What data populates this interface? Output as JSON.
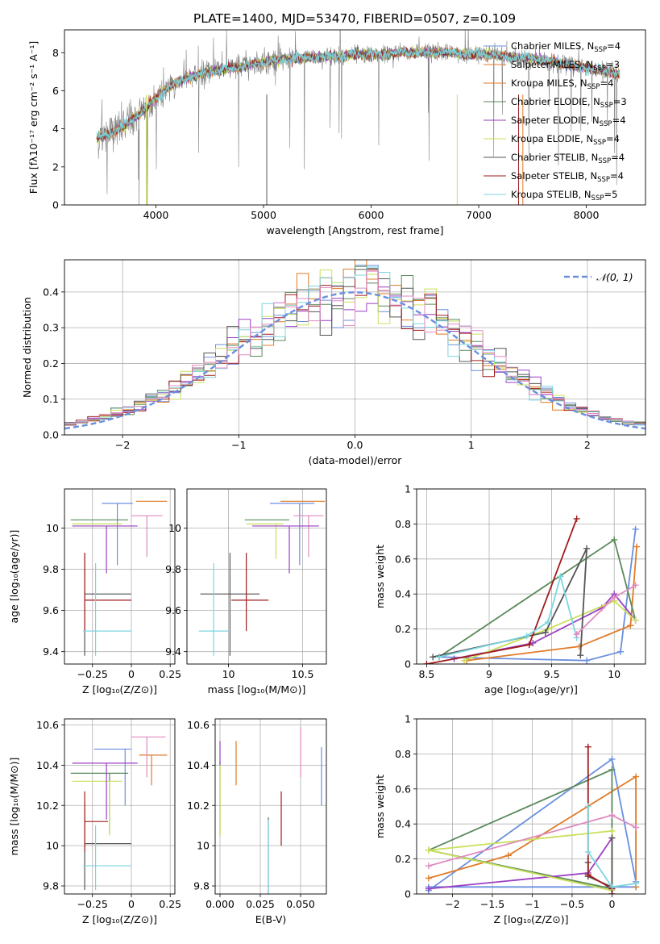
{
  "figure_title": "PLATE=1400, MJD=53470, FIBERID=0507, z=0.109",
  "colors": [
    "#6a8fdf",
    "#e07b2a",
    "#5a8a5a",
    "#9b3fc3",
    "#c9e05a",
    "#555555",
    "#a01c1c",
    "#7bd6e0",
    "#e08ac0"
  ],
  "chart_data": [
    {
      "id": "spectrum",
      "type": "line",
      "title": "",
      "xlabel": "wavelength [Angstrom, rest frame]",
      "ylabel": "Flux [fλ10⁻¹⁷ erg cm⁻² s⁻¹ A⁻¹]",
      "xlim": [
        3150,
        8550
      ],
      "ylim": [
        0,
        9.2
      ],
      "xticks": [
        4000,
        5000,
        6000,
        7000,
        8000
      ],
      "yticks": [
        0,
        2,
        4,
        6,
        8
      ],
      "grid": false,
      "legend_position": "right",
      "legend": [
        {
          "label": "Chabrier MILES, N",
          "sub": "SSP",
          "suffix": "=4",
          "color": "#6a8fdf"
        },
        {
          "label": "Salpeter MILES, N",
          "sub": "SSP",
          "suffix": "=3",
          "color": "#e07b2a"
        },
        {
          "label": "Kroupa MILES, N",
          "sub": "SSP",
          "suffix": "=4",
          "color": "#e07b2a"
        },
        {
          "label": "Chabrier ELODIE, N",
          "sub": "SSP",
          "suffix": "=3",
          "color": "#5a8a5a"
        },
        {
          "label": "Salpeter ELODIE, N",
          "sub": "SSP",
          "suffix": "=4",
          "color": "#9b3fc3"
        },
        {
          "label": "Kroupa ELODIE, N",
          "sub": "SSP",
          "suffix": "=4",
          "color": "#c9e05a"
        },
        {
          "label": "Chabrier STELIB, N",
          "sub": "SSP",
          "suffix": "=4",
          "color": "#555555"
        },
        {
          "label": "Salpeter STELIB, N",
          "sub": "SSP",
          "suffix": "=4",
          "color": "#a01c1c"
        },
        {
          "label": "Kroupa STELIB, N",
          "sub": "SSP",
          "suffix": "=5",
          "color": "#7bd6e0"
        }
      ],
      "observed_color": "#808080",
      "continuum": {
        "x": [
          3450,
          3550,
          3650,
          3750,
          3850,
          3950,
          4050,
          4150,
          4300,
          4500,
          4700,
          4900,
          5100,
          5300,
          5500,
          5700,
          5900,
          6100,
          6300,
          6500,
          6700,
          6900,
          7100,
          7300,
          7500,
          7700,
          7900,
          8100,
          8300
        ],
        "y": [
          3.5,
          3.7,
          4.0,
          4.3,
          4.8,
          5.3,
          5.9,
          6.3,
          6.7,
          7.0,
          7.2,
          7.4,
          7.6,
          7.7,
          7.8,
          7.8,
          7.9,
          7.9,
          8.0,
          8.0,
          8.0,
          7.9,
          7.9,
          7.8,
          7.7,
          7.5,
          7.3,
          7.1,
          6.9
        ]
      }
    },
    {
      "id": "residuals",
      "type": "step",
      "title": "",
      "xlabel": "(data-model)/error",
      "ylabel": "Normed distribution",
      "xlim": [
        -2.5,
        2.5
      ],
      "ylim": [
        0,
        0.49
      ],
      "xticks": [
        -2,
        -1,
        0,
        1,
        2
      ],
      "yticks": [
        0.0,
        0.1,
        0.2,
        0.3,
        0.4
      ],
      "grid": true,
      "legend_position": "top-right",
      "normal_label": "𝒩(0, 1)",
      "normal_color": "#6a8fdf",
      "bin_width": 0.1
    },
    {
      "id": "age-vs-Z",
      "type": "errorbar",
      "xlabel": "Z [log₁₀(Z/Z⊙)]",
      "ylabel": "age  [log₁₀(age/yr)]",
      "xlim": [
        -0.43,
        0.28
      ],
      "ylim": [
        9.34,
        10.19
      ],
      "xticks": [
        -0.25,
        0.0,
        0.25
      ],
      "yticks": [
        9.4,
        9.6,
        9.8,
        10.0
      ],
      "grid": true,
      "points": [
        {
          "x": -0.09,
          "y": 10.12,
          "xerr": [
            0.1,
            0.1
          ],
          "yerr": [
            0.3,
            0.0
          ],
          "color": "#6a8fdf"
        },
        {
          "x": 0.13,
          "y": 10.13,
          "xerr": [
            0.1,
            0.1
          ],
          "yerr": [
            0.0,
            0.0
          ],
          "color": "#e07b2a"
        },
        {
          "x": 0.1,
          "y": 10.06,
          "xerr": [
            0.1,
            0.1
          ],
          "yerr": [
            0.2,
            0.0
          ],
          "color": "#e08ac0"
        },
        {
          "x": -0.14,
          "y": 10.04,
          "xerr": [
            0.25,
            0.12
          ],
          "yerr": [
            0.0,
            0.0
          ],
          "color": "#5a8a5a"
        },
        {
          "x": -0.14,
          "y": 10.02,
          "xerr": [
            0.24,
            0.08
          ],
          "yerr": [
            0.0,
            0.0
          ],
          "color": "#c9e05a"
        },
        {
          "x": -0.16,
          "y": 10.01,
          "xerr": [
            0.22,
            0.2
          ],
          "yerr": [
            0.23,
            0.0
          ],
          "color": "#9b3fc3"
        },
        {
          "x": -0.3,
          "y": 9.68,
          "xerr": [
            0.0,
            0.3
          ],
          "yerr": [
            0.3,
            0.2
          ],
          "color": "#555555"
        },
        {
          "x": -0.3,
          "y": 9.65,
          "xerr": [
            0.0,
            0.3
          ],
          "yerr": [
            0.15,
            0.23
          ],
          "color": "#a01c1c"
        },
        {
          "x": -0.23,
          "y": 9.5,
          "xerr": [
            0.08,
            0.23
          ],
          "yerr": [
            0.12,
            0.33
          ],
          "color": "#7bd6e0"
        }
      ]
    },
    {
      "id": "age-vs-mass",
      "type": "errorbar",
      "xlabel": "mass [log₁₀(M/M⊙)]",
      "ylabel": "",
      "xlim": [
        9.72,
        10.66
      ],
      "ylim": [
        9.34,
        10.19
      ],
      "xticks": [
        10.0,
        10.5
      ],
      "yticks": [
        9.4,
        9.6,
        9.8,
        10.0
      ],
      "grid": true,
      "points": [
        {
          "x": 10.48,
          "y": 10.12,
          "xerr": [
            0.2,
            0.1
          ],
          "yerr": [
            0.3,
            0.0
          ],
          "color": "#6a8fdf"
        },
        {
          "x": 10.45,
          "y": 10.13,
          "xerr": [
            0.1,
            0.2
          ],
          "yerr": [
            0.0,
            0.0
          ],
          "color": "#e07b2a"
        },
        {
          "x": 10.54,
          "y": 10.06,
          "xerr": [
            0.1,
            0.1
          ],
          "yerr": [
            0.2,
            0.0
          ],
          "color": "#e08ac0"
        },
        {
          "x": 10.36,
          "y": 10.04,
          "xerr": [
            0.25,
            0.05
          ],
          "yerr": [
            0.0,
            0.0
          ],
          "color": "#5a8a5a"
        },
        {
          "x": 10.32,
          "y": 10.02,
          "xerr": [
            0.2,
            0.05
          ],
          "yerr": [
            0.17,
            0.0
          ],
          "color": "#c9e05a"
        },
        {
          "x": 10.41,
          "y": 10.01,
          "xerr": [
            0.25,
            0.2
          ],
          "yerr": [
            0.23,
            0.0
          ],
          "color": "#9b3fc3"
        },
        {
          "x": 10.01,
          "y": 9.68,
          "xerr": [
            0.2,
            0.2
          ],
          "yerr": [
            0.3,
            0.2
          ],
          "color": "#555555"
        },
        {
          "x": 10.12,
          "y": 9.65,
          "xerr": [
            0.1,
            0.15
          ],
          "yerr": [
            0.15,
            0.23
          ],
          "color": "#a01c1c"
        },
        {
          "x": 9.9,
          "y": 9.5,
          "xerr": [
            0.1,
            0.1
          ],
          "yerr": [
            0.12,
            0.33
          ],
          "color": "#7bd6e0"
        }
      ]
    },
    {
      "id": "mass-weight-vs-age",
      "type": "line",
      "xlabel": "age  [log₁₀(age/yr)]",
      "ylabel": "mass weight",
      "xlim": [
        8.42,
        10.25
      ],
      "ylim": [
        0.0,
        1.0
      ],
      "xticks": [
        8.5,
        9.0,
        9.5,
        10.0
      ],
      "yticks": [
        0.0,
        0.2,
        0.4,
        0.6,
        0.8,
        1.0
      ],
      "grid": true,
      "series": [
        {
          "color": "#6a8fdf",
          "x": [
            8.6,
            9.78,
            10.05,
            10.17
          ],
          "y": [
            0.04,
            0.02,
            0.07,
            0.77
          ]
        },
        {
          "color": "#e07b2a",
          "x": [
            8.82,
            9.72,
            10.13,
            10.18
          ],
          "y": [
            0.02,
            0.1,
            0.22,
            0.67
          ]
        },
        {
          "color": "#5a8a5a",
          "x": [
            8.6,
            10.0,
            10.17
          ],
          "y": [
            0.04,
            0.71,
            0.25
          ]
        },
        {
          "color": "#9b3fc3",
          "x": [
            8.72,
            9.35,
            9.9,
            10.0,
            10.17
          ],
          "y": [
            0.03,
            0.12,
            0.32,
            0.4,
            0.25
          ]
        },
        {
          "color": "#c9e05a",
          "x": [
            8.8,
            9.47,
            10.0,
            10.17
          ],
          "y": [
            0.02,
            0.2,
            0.36,
            0.25
          ]
        },
        {
          "color": "#555555",
          "x": [
            8.55,
            9.45,
            9.78,
            9.73
          ],
          "y": [
            0.04,
            0.18,
            0.66,
            0.05
          ]
        },
        {
          "color": "#a01c1c",
          "x": [
            8.5,
            9.32,
            9.7
          ],
          "y": [
            0.0,
            0.11,
            0.83
          ]
        },
        {
          "color": "#7bd6e0",
          "x": [
            8.6,
            9.3,
            9.47,
            9.57,
            9.7
          ],
          "y": [
            0.04,
            0.16,
            0.24,
            0.5,
            0.15
          ]
        },
        {
          "color": "#e08ac0",
          "x": [
            9.7,
            10.0,
            10.17
          ],
          "y": [
            0.17,
            0.38,
            0.45
          ]
        }
      ]
    },
    {
      "id": "mass-vs-Z",
      "type": "errorbar",
      "xlabel": "Z [log₁₀(Z/Z⊙)]",
      "ylabel": "mass [log₁₀(M/M⊙)]",
      "xlim": [
        -0.43,
        0.28
      ],
      "ylim": [
        9.76,
        10.63
      ],
      "xticks": [
        -0.25,
        0.0,
        0.25
      ],
      "yticks": [
        9.8,
        10.0,
        10.2,
        10.4,
        10.6
      ],
      "grid": true,
      "points": [
        {
          "x": -0.04,
          "y": 10.48,
          "xerr": [
            0.2,
            0.04
          ],
          "yerr": [
            0.28,
            0.0
          ],
          "color": "#6a8fdf"
        },
        {
          "x": 0.13,
          "y": 10.45,
          "xerr": [
            0.08,
            0.1
          ],
          "yerr": [
            0.15,
            0.0
          ],
          "color": "#e07b2a"
        },
        {
          "x": 0.1,
          "y": 10.54,
          "xerr": [
            0.1,
            0.12
          ],
          "yerr": [
            0.2,
            0.0
          ],
          "color": "#e08ac0"
        },
        {
          "x": -0.14,
          "y": 10.36,
          "xerr": [
            0.25,
            0.12
          ],
          "yerr": [
            0.3,
            0.0
          ],
          "color": "#5a8a5a"
        },
        {
          "x": -0.14,
          "y": 10.32,
          "xerr": [
            0.24,
            0.08
          ],
          "yerr": [
            0.27,
            0.0
          ],
          "color": "#c9e05a"
        },
        {
          "x": -0.16,
          "y": 10.41,
          "xerr": [
            0.22,
            0.2
          ],
          "yerr": [
            0.28,
            0.0
          ],
          "color": "#9b3fc3"
        },
        {
          "x": -0.3,
          "y": 10.01,
          "xerr": [
            0.0,
            0.3
          ],
          "yerr": [
            0.23,
            0.2
          ],
          "color": "#555555"
        },
        {
          "x": -0.3,
          "y": 10.12,
          "xerr": [
            0.0,
            0.15
          ],
          "yerr": [
            0.15,
            0.15
          ],
          "color": "#a01c1c"
        },
        {
          "x": -0.23,
          "y": 9.9,
          "xerr": [
            0.08,
            0.23
          ],
          "yerr": [
            0.12,
            0.2
          ],
          "color": "#7bd6e0"
        }
      ]
    },
    {
      "id": "mass-vs-EBV",
      "type": "errorbar",
      "xlabel": "E(B-V)",
      "ylabel": "",
      "xlim": [
        -0.003,
        0.066
      ],
      "ylim": [
        9.76,
        10.63
      ],
      "xticks": [
        0.0,
        0.025,
        0.05
      ],
      "yticks": [
        9.8,
        10.0,
        10.2,
        10.4,
        10.6
      ],
      "xtick_labels": [
        "0.000",
        "0.025",
        "0.050"
      ],
      "grid": true,
      "points": [
        {
          "x": 0.063,
          "y": 10.34,
          "xerr": [
            0,
            0
          ],
          "yerr": [
            0.14,
            0.15
          ],
          "color": "#6a8fdf"
        },
        {
          "x": 0.01,
          "y": 10.41,
          "xerr": [
            0,
            0
          ],
          "yerr": [
            0.11,
            0.11
          ],
          "color": "#e07b2a"
        },
        {
          "x": 0.05,
          "y": 10.46,
          "xerr": [
            0,
            0
          ],
          "yerr": [
            0.12,
            0.13
          ],
          "color": "#e08ac0"
        },
        {
          "x": 0.0,
          "y": 10.22,
          "xerr": [
            0,
            0
          ],
          "yerr": [
            0.17,
            0.2
          ],
          "color": "#5a8a5a"
        },
        {
          "x": 0.0,
          "y": 10.3,
          "xerr": [
            0,
            0
          ],
          "yerr": [
            0.25,
            0.12
          ],
          "color": "#c9e05a"
        },
        {
          "x": 0.0,
          "y": 10.46,
          "xerr": [
            0,
            0
          ],
          "yerr": [
            0.06,
            0.06
          ],
          "color": "#9b3fc3"
        },
        {
          "x": 0.03,
          "y": 9.96,
          "xerr": [
            0,
            0
          ],
          "yerr": [
            0.2,
            0.18
          ],
          "color": "#555555"
        },
        {
          "x": 0.038,
          "y": 10.12,
          "xerr": [
            0,
            0
          ],
          "yerr": [
            0.12,
            0.15
          ],
          "color": "#a01c1c"
        },
        {
          "x": 0.03,
          "y": 9.93,
          "xerr": [
            0,
            0
          ],
          "yerr": [
            0.17,
            0.2
          ],
          "color": "#7bd6e0"
        }
      ]
    },
    {
      "id": "mass-weight-vs-Z",
      "type": "line",
      "xlabel": "Z [log₁₀(Z/Z⊙)]",
      "ylabel": "mass weight",
      "xlim": [
        -2.45,
        0.42
      ],
      "ylim": [
        0.0,
        1.0
      ],
      "xticks": [
        -2.0,
        -1.5,
        -1.0,
        -0.5,
        0.0
      ],
      "yticks": [
        0.0,
        0.2,
        0.4,
        0.6,
        0.8,
        1.0
      ],
      "grid": true,
      "series": [
        {
          "color": "#6a8fdf",
          "x": [
            -2.3,
            0.0,
            0.3,
            0.3,
            -2.3
          ],
          "y": [
            0.02,
            0.77,
            0.07,
            0.04,
            0.04
          ]
        },
        {
          "color": "#e07b2a",
          "x": [
            -2.3,
            -1.3,
            0.3,
            0.3
          ],
          "y": [
            0.09,
            0.22,
            0.67,
            0.04
          ]
        },
        {
          "color": "#5a8a5a",
          "x": [
            -2.3,
            0.0,
            0.0,
            -2.3
          ],
          "y": [
            0.25,
            0.71,
            0.03,
            0.25
          ]
        },
        {
          "color": "#9b3fc3",
          "x": [
            -2.3,
            -0.3,
            0.0
          ],
          "y": [
            0.03,
            0.12,
            0.32
          ]
        },
        {
          "color": "#c9e05a",
          "x": [
            -2.3,
            0.0,
            0.0,
            -2.3
          ],
          "y": [
            0.25,
            0.02,
            0.36,
            0.25
          ]
        },
        {
          "color": "#555555",
          "x": [
            -0.3,
            -0.3,
            0.0,
            0.0
          ],
          "y": [
            0.18,
            0.1,
            0.04,
            0.32
          ]
        },
        {
          "color": "#a01c1c",
          "x": [
            -0.3,
            -0.3,
            0.0,
            0.0
          ],
          "y": [
            0.84,
            0.11,
            0.03,
            0.0
          ]
        },
        {
          "color": "#7bd6e0",
          "x": [
            -0.3,
            -0.3,
            0.0,
            0.3
          ],
          "y": [
            0.5,
            0.24,
            0.04,
            0.06
          ]
        },
        {
          "color": "#e08ac0",
          "x": [
            -2.3,
            0.0,
            0.3
          ],
          "y": [
            0.16,
            0.45,
            0.38
          ]
        }
      ]
    }
  ]
}
